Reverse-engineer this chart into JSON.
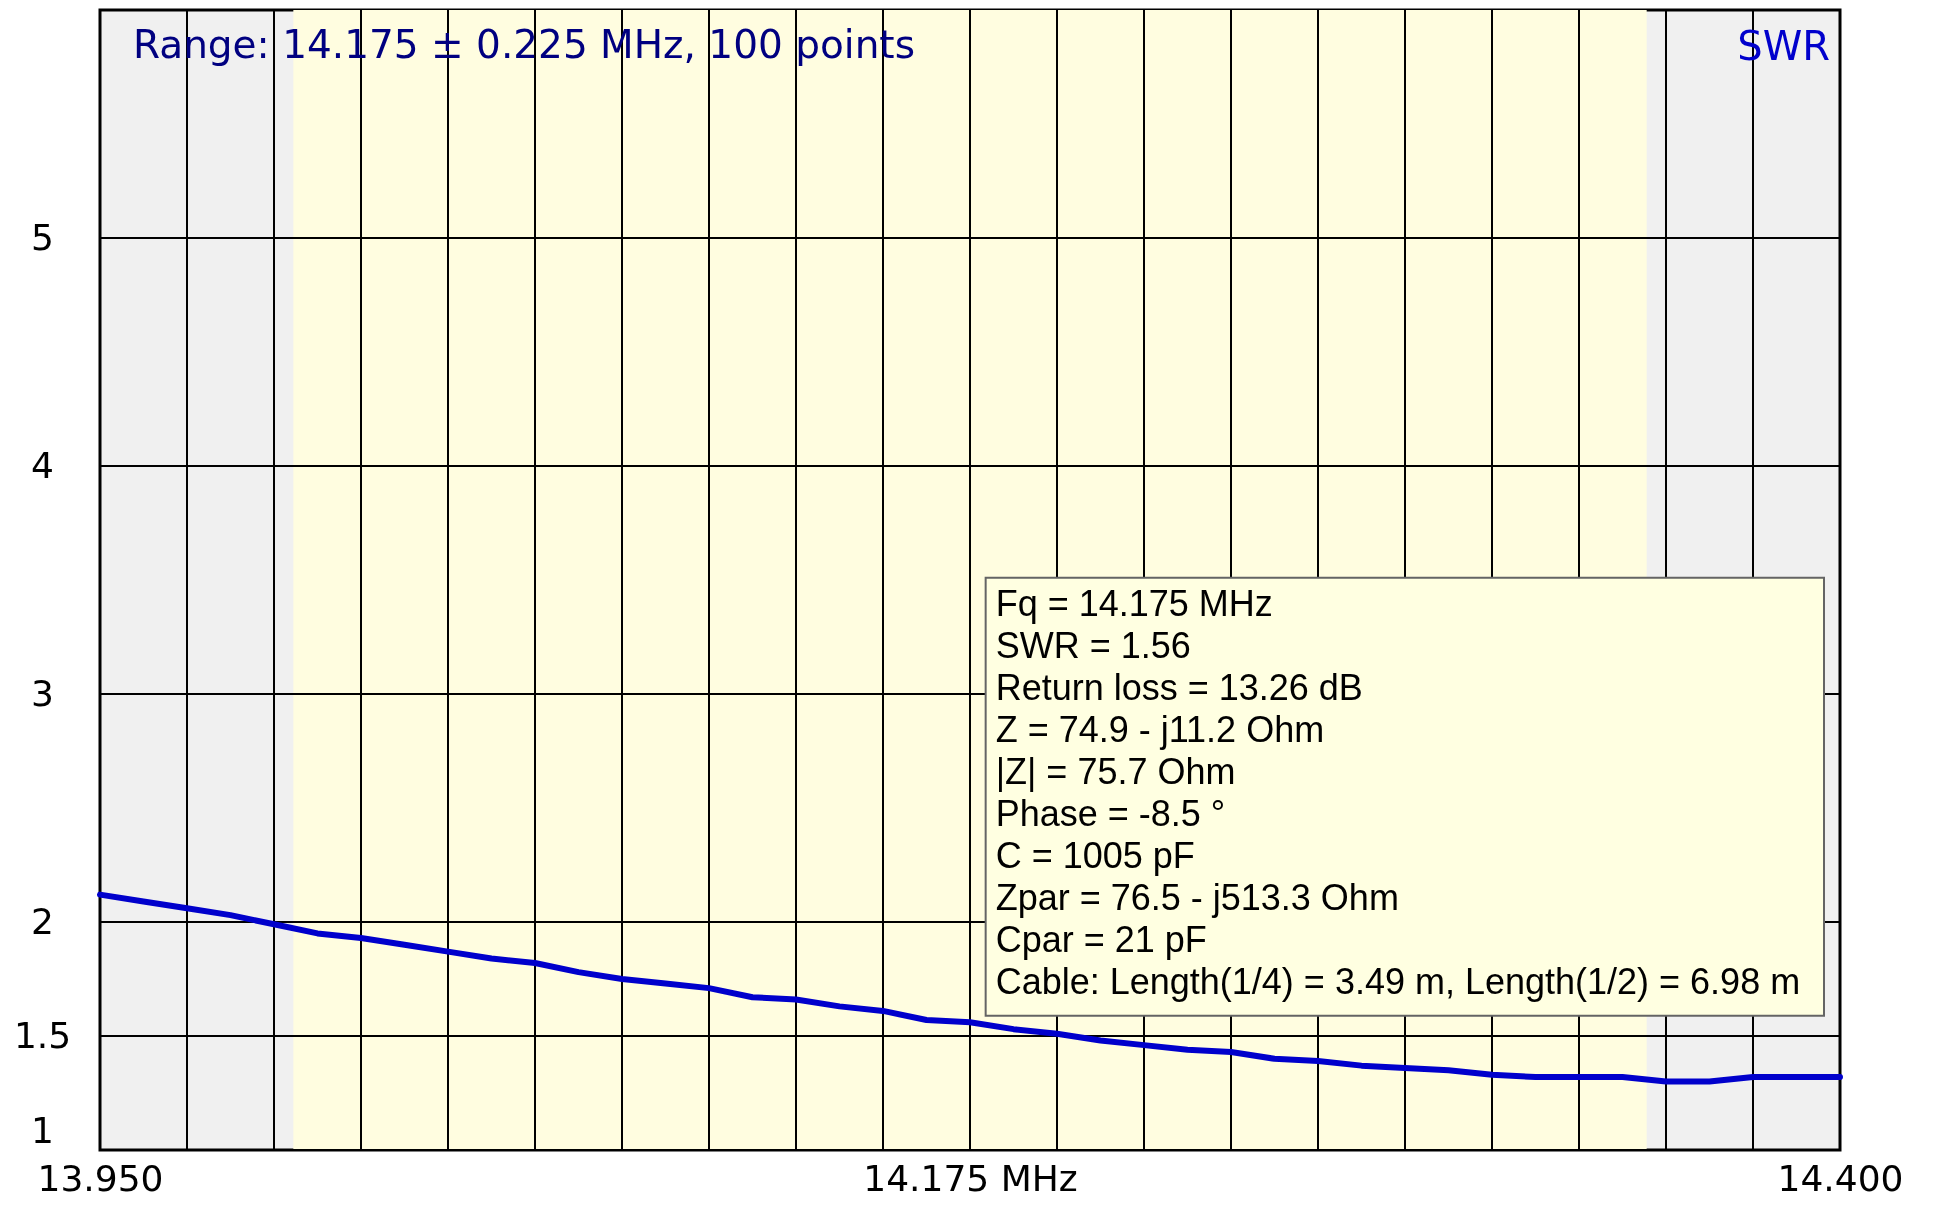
{
  "chart_data": {
    "type": "line",
    "title": "Range: 14.175 ± 0.225 MHz, 100 points",
    "x": [
      13.95,
      13.96125,
      13.9725,
      13.98375,
      13.995,
      14.00625,
      14.0175,
      14.02875,
      14.04,
      14.05125,
      14.0625,
      14.07375,
      14.085,
      14.09625,
      14.1075,
      14.11875,
      14.13,
      14.14125,
      14.1525,
      14.16375,
      14.175,
      14.18625,
      14.1975,
      14.20875,
      14.22,
      14.23125,
      14.2425,
      14.25375,
      14.265,
      14.27625,
      14.2875,
      14.29875,
      14.31,
      14.32125,
      14.3325,
      14.34375,
      14.355,
      14.36625,
      14.3775,
      14.38875,
      14.4
    ],
    "series": [
      {
        "name": "SWR",
        "color": "#0000cc",
        "values": [
          2.12,
          2.09,
          2.06,
          2.03,
          1.99,
          1.95,
          1.93,
          1.9,
          1.87,
          1.84,
          1.82,
          1.78,
          1.75,
          1.73,
          1.71,
          1.67,
          1.66,
          1.63,
          1.61,
          1.57,
          1.56,
          1.53,
          1.51,
          1.48,
          1.46,
          1.44,
          1.43,
          1.4,
          1.39,
          1.37,
          1.36,
          1.35,
          1.33,
          1.32,
          1.32,
          1.32,
          1.3,
          1.3,
          1.32,
          1.32,
          1.32
        ]
      }
    ],
    "xlim": [
      13.95,
      14.4
    ],
    "xticks": [
      {
        "value": 13.95,
        "label": "13.950"
      },
      {
        "value": 13.9725,
        "label": null
      },
      {
        "value": 13.995,
        "label": null
      },
      {
        "value": 14.0175,
        "label": null
      },
      {
        "value": 14.04,
        "label": null
      },
      {
        "value": 14.0625,
        "label": null
      },
      {
        "value": 14.085,
        "label": null
      },
      {
        "value": 14.1075,
        "label": null
      },
      {
        "value": 14.13,
        "label": null
      },
      {
        "value": 14.1525,
        "label": null
      },
      {
        "value": 14.175,
        "label": "14.175 MHz"
      },
      {
        "value": 14.1975,
        "label": null
      },
      {
        "value": 14.22,
        "label": null
      },
      {
        "value": 14.2425,
        "label": null
      },
      {
        "value": 14.265,
        "label": null
      },
      {
        "value": 14.2875,
        "label": null
      },
      {
        "value": 14.31,
        "label": null
      },
      {
        "value": 14.3325,
        "label": null
      },
      {
        "value": 14.355,
        "label": null
      },
      {
        "value": 14.3775,
        "label": null
      },
      {
        "value": 14.4,
        "label": "14.400"
      }
    ],
    "ylim": [
      1,
      6
    ],
    "yticks": [
      1,
      1.5,
      2,
      3,
      4,
      5
    ],
    "grid": true,
    "legend": "top right",
    "bands": [
      {
        "axis": "x",
        "from": 14.0,
        "to": 14.35,
        "color": "#fffde0"
      }
    ],
    "annotations": [
      "Fq = 14.175 MHz",
      "SWR = 1.56",
      "Return loss = 13.26 dB",
      "Z = 74.9 - j11.2 Ohm",
      "|Z| = 75.7 Ohm",
      "Phase = -8.5 °",
      "C = 1005 pF",
      "Zpar = 76.5 - j513.3 Ohm",
      "Cpar = 21 pF",
      "Cable: Length(1/4) = 3.49 m, Length(1/2) = 6.98 m"
    ]
  }
}
